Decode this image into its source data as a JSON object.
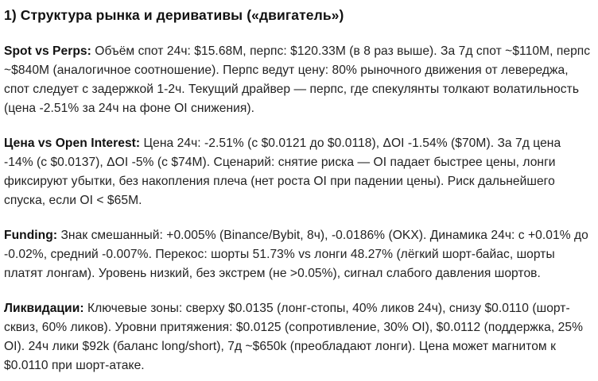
{
  "section": {
    "title": "1) Структура рынка и деривативы («двигатель»)"
  },
  "paragraphs": [
    {
      "label": "Spot vs Perps:",
      "text": " Объём спот 24ч: $15.68M, перпс: $120.33M (в 8 раз выше). За 7д спот ~$110M, перпс ~$840M (аналогичное соотношение). Перпс ведут цену: 80% рыночного движения от левереджа, спот следует с задержкой 1-2ч. Текущий драйвер — перпс, где спекулянты толкают волатильность (цена -2.51% за 24ч на фоне OI снижения)."
    },
    {
      "label": "Цена vs Open Interest:",
      "text": " Цена 24ч: -2.51% (с $0.0121 до $0.0118), ΔOI -1.54% ($70M). За 7д цена -14% (с $0.0137), ΔOI -5% (с $74M). Сценарий: снятие риска — OI падает быстрее цены, лонги фиксируют убытки, без накопления плеча (нет роста OI при падении цены). Риск дальнейшего спуска, если OI < $65M."
    },
    {
      "label": "Funding:",
      "text": " Знак смешанный: +0.005% (Binance/Bybit, 8ч), -0.0186% (OKX). Динамика 24ч: с +0.01% до -0.02%, средний -0.007%. Перекос: шорты 51.73% vs лонги 48.27% (лёгкий шорт-байас, шорты платят лонгам). Уровень низкий, без экстрем (не >0.05%), сигнал слабого давления шортов."
    },
    {
      "label": "Ликвидации:",
      "text": " Ключевые зоны: сверху $0.0135 (лонг-стопы, 40% ликов 24ч), снизу $0.0110 (шорт-сквиз, 60% ликов). Уровни притяжения: $0.0125 (сопротивление, 30% OI), $0.0112 (поддержка, 25% OI). 24ч лики $92k (баланс long/short), 7д ~$650k (преобладают лонги). Цена может магнитом к $0.0110 при шорт-атаке."
    }
  ]
}
